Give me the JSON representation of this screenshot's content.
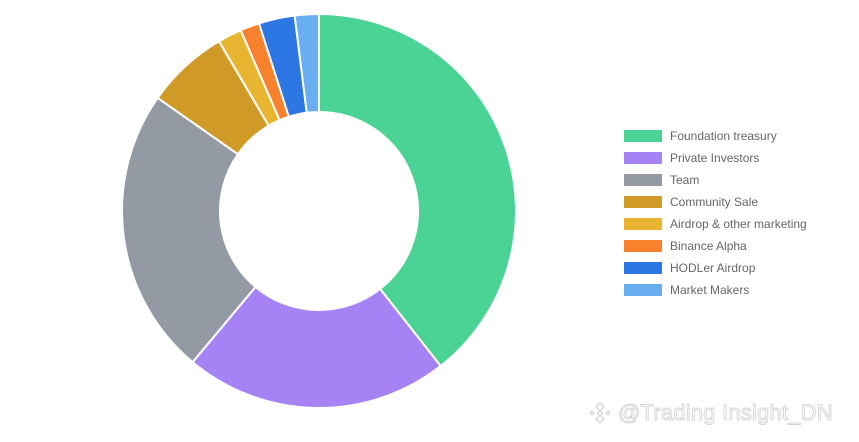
{
  "chart_data": {
    "type": "pie",
    "variant": "doughnut",
    "title": "",
    "legend_position": "right",
    "categories": [
      "Foundation treasury",
      "Private Investors",
      "Team",
      "Community Sale",
      "Airdrop & other marketing",
      "Binance Alpha",
      "HODLer Airdrop",
      "Market Makers"
    ],
    "values": [
      40,
      22,
      24,
      6.9,
      2,
      1.6,
      3,
      2
    ],
    "colors": [
      "#4ad395",
      "#a683f4",
      "#949aa3",
      "#cf9a26",
      "#e8b530",
      "#f7812c",
      "#2d77e5",
      "#6aaef2"
    ]
  },
  "watermark": {
    "text": "@Trading Insight_DN",
    "logo_icon": "binance-diamond-icon"
  }
}
